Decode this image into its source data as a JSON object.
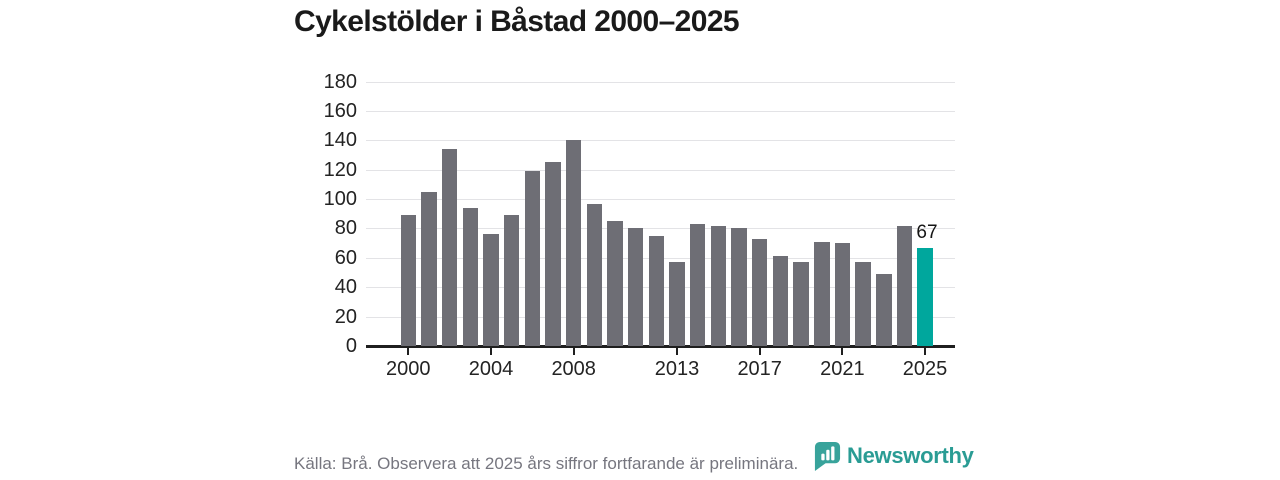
{
  "header": {
    "title": "Cykelstölder i Båstad 2000–2025"
  },
  "chart_data": {
    "type": "bar",
    "title": "Cykelstölder i Båstad 2000–2025",
    "categories": [
      2000,
      2001,
      2002,
      2003,
      2004,
      2005,
      2006,
      2007,
      2008,
      2009,
      2010,
      2011,
      2012,
      2013,
      2014,
      2015,
      2016,
      2017,
      2018,
      2019,
      2020,
      2021,
      2022,
      2023,
      2024,
      2025
    ],
    "values": [
      89,
      105,
      134,
      94,
      76,
      89,
      119,
      125,
      140,
      97,
      85,
      80,
      75,
      57,
      83,
      82,
      80,
      73,
      61,
      57,
      71,
      70,
      57,
      49,
      82,
      67
    ],
    "highlight_year": 2025,
    "highlight_value_label": "67",
    "yticks": [
      0,
      20,
      40,
      60,
      80,
      100,
      120,
      140,
      160,
      180
    ],
    "xticks": [
      2000,
      2004,
      2008,
      2013,
      2017,
      2021,
      2025
    ],
    "ylim": [
      0,
      180
    ],
    "xlabel": "",
    "ylabel": "",
    "grid": "horizontal",
    "legend": "none",
    "bar_color": "#6e6e75",
    "highlight_color": "#00a79d"
  },
  "footer": {
    "source": "Källa: Brå. Observera att 2025 års siffror fortfarande är preliminära.",
    "brand": "Newsworthy"
  },
  "colors": {
    "accent_teal": "#00a79d",
    "bar_gray": "#6e6e75",
    "logo_teal": "#2a9c94",
    "logo_icon_teal": "#38a39b",
    "text_dark": "#1a1a1a",
    "text_gray": "#76767f",
    "gridline": "#e3e3e6",
    "axis": "#1f1f1f"
  }
}
